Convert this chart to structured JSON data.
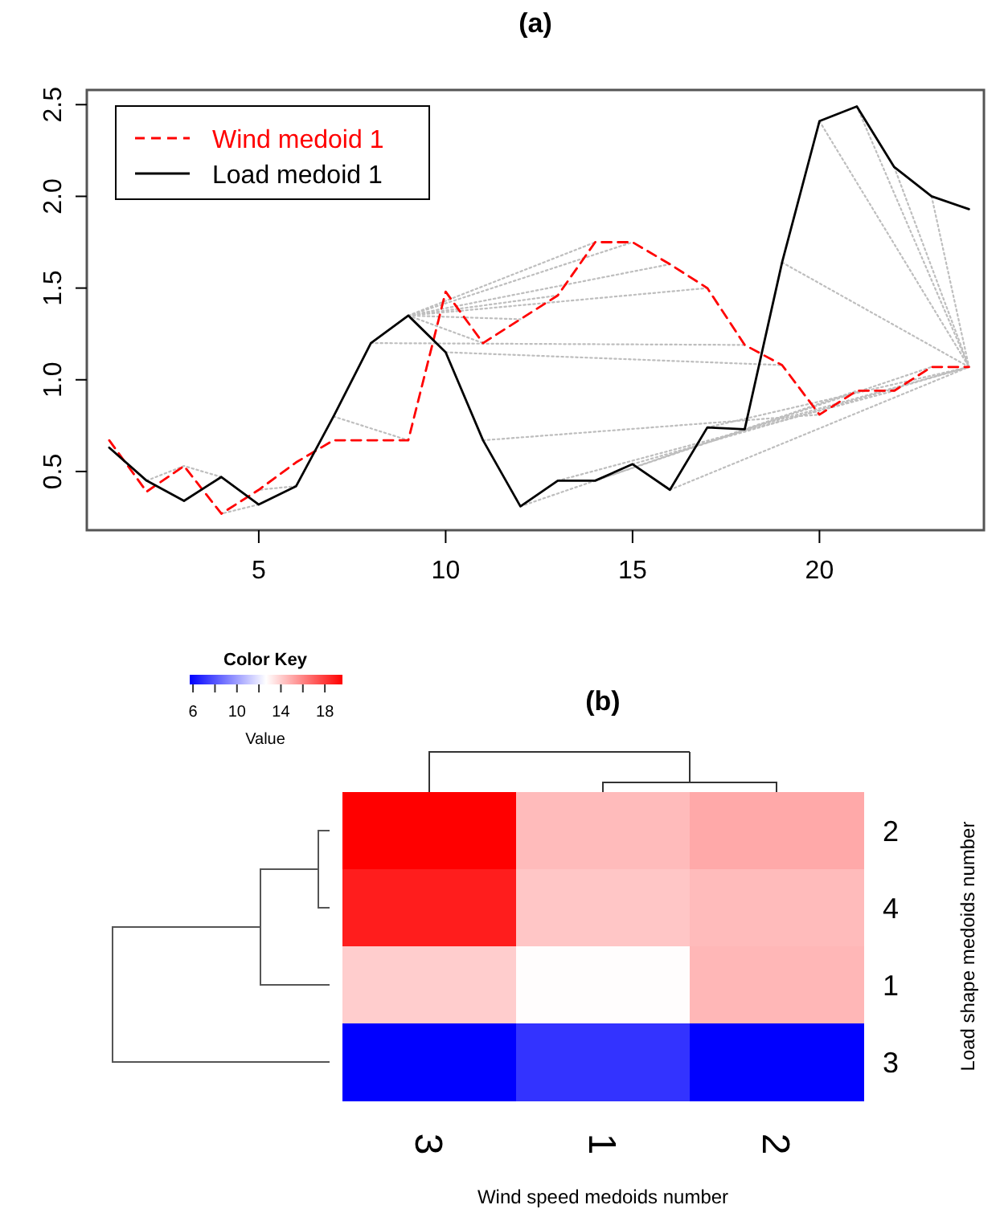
{
  "chart_data": [
    {
      "type": "line",
      "title": "(a)",
      "xlim": [
        0.4,
        24.4
      ],
      "ylim": [
        0.18,
        2.58
      ],
      "xticks": [
        5,
        10,
        15,
        20
      ],
      "yticks": [
        0.5,
        {
          "value": 1,
          "label": "1.0"
        },
        1.5,
        {
          "value": 2,
          "label": "2.0"
        },
        2.5
      ],
      "legend": "top left",
      "marker": "none",
      "series": [
        {
          "name": "Wind medoid 1",
          "color": "#ff0000",
          "line_style": "dashed",
          "x": [
            1,
            2,
            3,
            4,
            5,
            6,
            7,
            8,
            9,
            10,
            11,
            12,
            13,
            14,
            15,
            16,
            17,
            18,
            19,
            20,
            21,
            22,
            23,
            24
          ],
          "values": [
            0.67,
            0.39,
            0.53,
            0.27,
            0.4,
            0.55,
            0.67,
            0.67,
            0.67,
            1.48,
            1.2,
            1.33,
            1.46,
            1.75,
            1.75,
            1.63,
            1.5,
            1.19,
            1.08,
            0.81,
            0.94,
            0.94,
            1.07,
            1.07
          ]
        },
        {
          "name": "Load medoid 1",
          "color": "#000000",
          "line_style": "solid",
          "x": [
            1,
            2,
            3,
            4,
            5,
            6,
            7,
            8,
            9,
            10,
            11,
            12,
            13,
            14,
            15,
            16,
            17,
            18,
            19,
            20,
            21,
            22,
            23,
            24
          ],
          "values": [
            0.63,
            0.45,
            0.34,
            0.47,
            0.32,
            0.42,
            0.8,
            1.2,
            1.35,
            1.15,
            0.67,
            0.31,
            0.45,
            0.45,
            0.54,
            0.4,
            0.74,
            0.73,
            1.64,
            2.41,
            2.49,
            2.16,
            2.0,
            1.93
          ]
        },
        {
          "color": "#bebebe",
          "line_style": "dotted",
          "x": [
            2,
            3
          ],
          "values": [
            0.45,
            0.53
          ]
        },
        {
          "color": "#bebebe",
          "line_style": "dotted",
          "x": [
            4,
            3
          ],
          "values": [
            0.47,
            0.53
          ]
        },
        {
          "color": "#bebebe",
          "line_style": "dotted",
          "x": [
            5,
            4
          ],
          "values": [
            0.32,
            0.27
          ]
        },
        {
          "color": "#bebebe",
          "line_style": "dotted",
          "x": [
            6,
            5
          ],
          "values": [
            0.42,
            0.4
          ]
        },
        {
          "color": "#bebebe",
          "line_style": "dotted",
          "x": [
            7,
            9
          ],
          "values": [
            0.8,
            0.67
          ]
        },
        {
          "color": "#bebebe",
          "line_style": "dotted",
          "x": [
            8,
            18
          ],
          "values": [
            1.2,
            1.19
          ]
        },
        {
          "color": "#bebebe",
          "line_style": "dotted",
          "x": [
            9,
            11
          ],
          "values": [
            1.35,
            1.2
          ]
        },
        {
          "color": "#bebebe",
          "line_style": "dotted",
          "x": [
            9,
            12
          ],
          "values": [
            1.35,
            1.33
          ]
        },
        {
          "color": "#bebebe",
          "line_style": "dotted",
          "x": [
            9,
            13
          ],
          "values": [
            1.35,
            1.46
          ]
        },
        {
          "color": "#bebebe",
          "line_style": "dotted",
          "x": [
            9,
            14
          ],
          "values": [
            1.35,
            1.75
          ]
        },
        {
          "color": "#bebebe",
          "line_style": "dotted",
          "x": [
            9,
            15
          ],
          "values": [
            1.35,
            1.75
          ]
        },
        {
          "color": "#bebebe",
          "line_style": "dotted",
          "x": [
            9,
            16
          ],
          "values": [
            1.35,
            1.63
          ]
        },
        {
          "color": "#bebebe",
          "line_style": "dotted",
          "x": [
            9,
            17
          ],
          "values": [
            1.35,
            1.5
          ]
        },
        {
          "color": "#bebebe",
          "line_style": "dotted",
          "x": [
            10,
            19
          ],
          "values": [
            1.15,
            1.08
          ]
        },
        {
          "color": "#bebebe",
          "line_style": "dotted",
          "x": [
            11,
            20
          ],
          "values": [
            0.67,
            0.81
          ]
        },
        {
          "color": "#bebebe",
          "line_style": "dotted",
          "x": [
            12,
            21
          ],
          "values": [
            0.31,
            0.94
          ]
        },
        {
          "color": "#bebebe",
          "line_style": "dotted",
          "x": [
            13,
            22
          ],
          "values": [
            0.45,
            0.94
          ]
        },
        {
          "color": "#bebebe",
          "line_style": "dotted",
          "x": [
            14,
            23
          ],
          "values": [
            0.45,
            1.07
          ]
        },
        {
          "color": "#bebebe",
          "line_style": "dotted",
          "x": [
            15,
            24
          ],
          "values": [
            0.54,
            1.07
          ]
        },
        {
          "color": "#bebebe",
          "line_style": "dotted",
          "x": [
            16,
            24
          ],
          "values": [
            0.4,
            1.07
          ]
        },
        {
          "color": "#bebebe",
          "line_style": "dotted",
          "x": [
            17,
            24
          ],
          "values": [
            0.74,
            1.07
          ]
        },
        {
          "color": "#bebebe",
          "line_style": "dotted",
          "x": [
            18,
            24
          ],
          "values": [
            0.73,
            1.07
          ]
        },
        {
          "color": "#bebebe",
          "line_style": "dotted",
          "x": [
            19,
            24
          ],
          "values": [
            1.64,
            1.07
          ]
        },
        {
          "color": "#bebebe",
          "line_style": "dotted",
          "x": [
            20,
            24
          ],
          "values": [
            2.41,
            1.07
          ]
        },
        {
          "color": "#bebebe",
          "line_style": "dotted",
          "x": [
            21,
            24
          ],
          "values": [
            2.49,
            1.07
          ]
        },
        {
          "color": "#bebebe",
          "line_style": "dotted",
          "x": [
            22,
            24
          ],
          "values": [
            2.16,
            1.07
          ]
        },
        {
          "color": "#bebebe",
          "line_style": "dotted",
          "x": [
            23,
            24
          ],
          "values": [
            2.0,
            1.07
          ]
        }
      ]
    },
    {
      "type": "heatmap",
      "title": "(b)",
      "xlabel": "Wind speed medoids number",
      "ylabel": "Load shape medoids number",
      "legend_title": "Color Key",
      "clabel": "Value",
      "categories": [
        "3",
        "1",
        "2"
      ],
      "y_categories": [
        "2",
        "4",
        "1",
        "3"
      ],
      "cells": [
        [
          19.6,
          14.5,
          15.0
        ],
        [
          18.8,
          14.2,
          14.5
        ],
        [
          14.0,
          12.7,
          14.6
        ],
        [
          5.7,
          7.1,
          5.7
        ]
      ],
      "clim": [
        5.7,
        19.6
      ],
      "cticks": [
        6,
        {
          "value": 8,
          "label": null
        },
        10,
        {
          "value": 12,
          "label": null
        },
        14,
        {
          "value": 16,
          "label": null
        },
        18
      ]
    }
  ]
}
